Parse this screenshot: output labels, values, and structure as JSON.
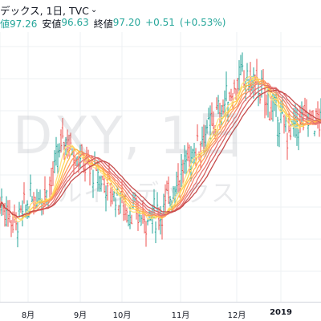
{
  "header": {
    "title": "デックス, 1日, TVC",
    "chevron_icon": "chevron-down-icon"
  },
  "ohlc": {
    "high_value": "値97.26",
    "low_label": "安値",
    "low_value": "96.63",
    "close_label": "終値",
    "close_value": "97.20",
    "change": "+0.51",
    "change_pct": "(+0.53%)"
  },
  "watermark": {
    "symbol": "DXY, 1日",
    "name": "ルインデックス"
  },
  "colors": {
    "up": "#26a69a",
    "down": "#ef5350",
    "ribbon": [
      "#ffe082",
      "#ffd54f",
      "#ffb74d",
      "#ff9c5b",
      "#f4806a",
      "#e57373",
      "#d65f5f",
      "#c64b4b"
    ]
  },
  "chart_data": {
    "type": "line",
    "x_tick_labels": [
      "8月",
      "9月",
      "10月",
      "11月",
      "12月",
      "2019"
    ],
    "series_shape": [
      [
        0,
        97.6
      ],
      [
        10,
        96.9
      ],
      [
        20,
        97.7
      ],
      [
        30,
        97.9
      ],
      [
        40,
        99.6
      ],
      [
        50,
        98.9
      ],
      [
        60,
        98.4
      ],
      [
        70,
        97.9
      ],
      [
        80,
        97.3
      ],
      [
        90,
        97.1
      ],
      [
        100,
        97.2
      ],
      [
        110,
        98.2
      ],
      [
        120,
        99.1
      ],
      [
        130,
        99.8
      ],
      [
        140,
        100.6
      ],
      [
        150,
        101.4
      ],
      [
        160,
        101.2
      ],
      [
        170,
        100.4
      ],
      [
        180,
        99.7
      ],
      [
        190,
        100.1
      ],
      [
        200,
        100.1
      ]
    ]
  }
}
